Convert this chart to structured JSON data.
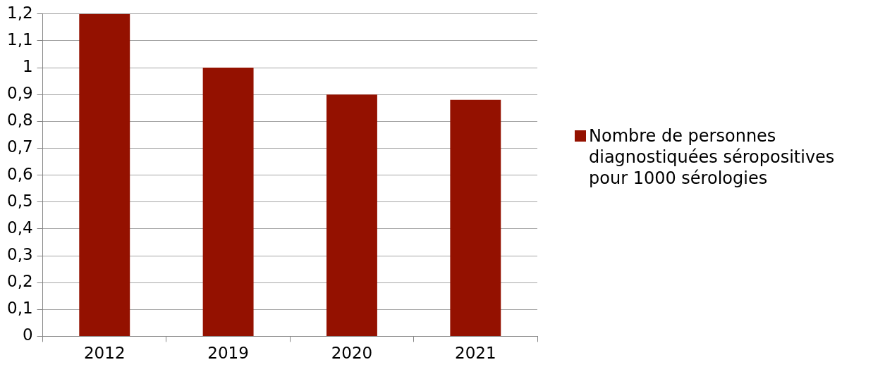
{
  "chart_data": {
    "type": "bar",
    "categories": [
      "2012",
      "2019",
      "2020",
      "2021"
    ],
    "series": [
      {
        "name": "Nombre de personnes diagnostiquées séropositives pour 1000 sérologies",
        "color": "#941100",
        "values": [
          1.2,
          1.0,
          0.9,
          0.88
        ]
      }
    ],
    "ylim": [
      0,
      1.2
    ],
    "yticks": [
      {
        "value": 0,
        "label": "0"
      },
      {
        "value": 0.1,
        "label": "0,1"
      },
      {
        "value": 0.2,
        "label": "0,2"
      },
      {
        "value": 0.3,
        "label": "0,3"
      },
      {
        "value": 0.4,
        "label": "0,4"
      },
      {
        "value": 0.5,
        "label": "0,5"
      },
      {
        "value": 0.6,
        "label": "0,6"
      },
      {
        "value": 0.7,
        "label": "0,7"
      },
      {
        "value": 0.8,
        "label": "0,8"
      },
      {
        "value": 0.9,
        "label": "0,9"
      },
      {
        "value": 1,
        "label": "1"
      },
      {
        "value": 1.1,
        "label": "1,1"
      },
      {
        "value": 1.2,
        "label": "1,2"
      }
    ],
    "grid": "y",
    "legend": "right"
  }
}
